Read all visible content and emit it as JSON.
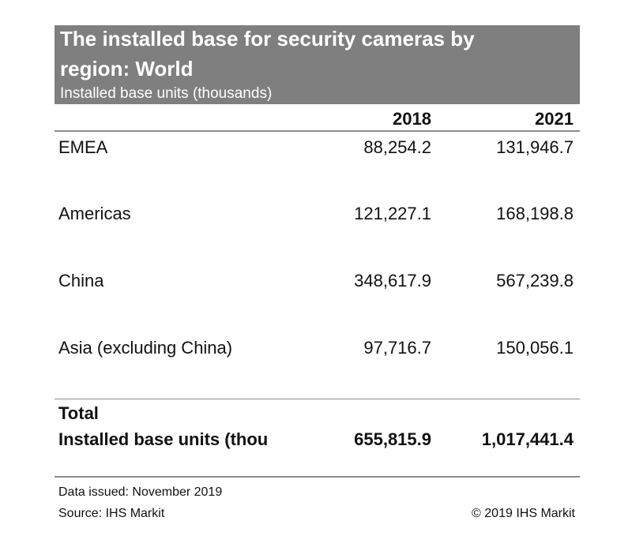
{
  "table": {
    "title_line1": "The installed base for security cameras by",
    "title_line2": "region: World",
    "subtitle": "Installed base units (thousands)",
    "columns": [
      "2018",
      "2021"
    ],
    "rows": [
      {
        "label": "EMEA",
        "values": [
          "88,254.2",
          "131,946.7"
        ]
      },
      {
        "label": "Americas",
        "values": [
          "121,227.1",
          "168,198.8"
        ]
      },
      {
        "label": "China",
        "values": [
          "348,617.9",
          "567,239.8"
        ]
      },
      {
        "label": "Asia (excluding China)",
        "values": [
          "97,716.7",
          "150,056.1"
        ]
      }
    ],
    "total": {
      "heading": "Total",
      "label": "Installed base units (thou",
      "values": [
        "655,815.9",
        "1,017,441.4"
      ]
    }
  },
  "footer": {
    "issued": "Data issued: November 2019",
    "source": "Source: IHS Markit",
    "copyright": "© 2019 IHS Markit"
  },
  "colors": {
    "header_background": "#7f7f7f",
    "header_text": "#ffffff",
    "rule": "#8c8c8c"
  }
}
